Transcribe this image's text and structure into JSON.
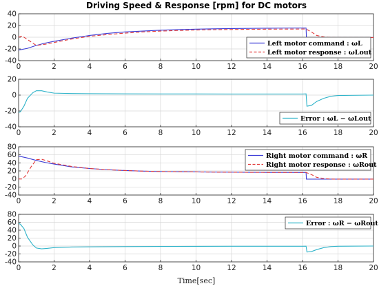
{
  "figure": {
    "title": "Driving Speed & Response [rpm] for DC motors",
    "xlabel": "Time[sec]"
  },
  "chart_data": [
    {
      "type": "line",
      "xlim": [
        0,
        20
      ],
      "ylim": [
        -40,
        40
      ],
      "xticks": [
        0,
        2,
        4,
        6,
        8,
        10,
        12,
        14,
        16,
        18,
        20
      ],
      "yticks": [
        -40,
        -20,
        0,
        20,
        40
      ],
      "grid": true,
      "legend": "bottom-right",
      "series": [
        {
          "name": "Left motor command : ωL",
          "color": "#3b3bd6",
          "dash": "solid",
          "x": [
            0,
            0.5,
            1,
            1.5,
            2,
            3,
            4,
            5,
            6,
            7,
            8,
            9,
            10,
            11,
            12,
            13,
            14,
            15,
            16.2,
            16.22,
            17,
            18,
            19,
            20
          ],
          "y": [
            -22,
            -19,
            -14,
            -10,
            -7,
            -1.5,
            3,
            6.5,
            9,
            10.5,
            12,
            13,
            13.8,
            14.3,
            14.8,
            15.1,
            15.4,
            15.6,
            15.7,
            -0.5,
            -0.5,
            -0.5,
            -0.5,
            -0.5
          ]
        },
        {
          "name": "Left motor response : ωLout",
          "color": "#e23a3a",
          "dash": "dashed",
          "x": [
            0,
            0.2,
            0.5,
            1,
            1.5,
            2,
            3,
            4,
            5,
            6,
            7,
            8,
            9,
            10,
            11,
            12,
            13,
            14,
            15,
            16.2,
            16.5,
            16.8,
            17.2,
            17.6,
            18,
            19,
            20
          ],
          "y": [
            0,
            2,
            -4,
            -14,
            -12,
            -9,
            -3,
            1.5,
            4.5,
            7,
            9,
            10.5,
            11.5,
            12.3,
            12.8,
            13.2,
            13.5,
            13.7,
            13.9,
            14,
            9,
            3,
            0.5,
            -0.3,
            -0.5,
            -0.5,
            -0.5
          ]
        }
      ]
    },
    {
      "type": "line",
      "xlim": [
        0,
        20
      ],
      "ylim": [
        -40,
        20
      ],
      "xticks": [
        0,
        2,
        4,
        6,
        8,
        10,
        12,
        14,
        16,
        18,
        20
      ],
      "yticks": [
        -40,
        -20,
        0,
        20
      ],
      "grid": true,
      "legend": "bottom-right",
      "series": [
        {
          "name": "Error : ωL − ωLout",
          "color": "#2eb3c9",
          "dash": "solid",
          "x": [
            0,
            0.1,
            0.3,
            0.5,
            0.8,
            1,
            1.3,
            1.6,
            2,
            3,
            4,
            6,
            8,
            10,
            12,
            14,
            16,
            16.2,
            16.25,
            16.5,
            16.8,
            17.2,
            17.6,
            18,
            20
          ],
          "y": [
            -22,
            -21,
            -14,
            -4,
            3,
            5.5,
            5.5,
            4,
            2.5,
            2,
            1.8,
            1.6,
            1.5,
            1.5,
            1.4,
            1.4,
            1.4,
            1.6,
            -14,
            -13,
            -8,
            -4,
            -1.5,
            -0.5,
            0
          ]
        }
      ]
    },
    {
      "type": "line",
      "xlim": [
        0,
        20
      ],
      "ylim": [
        -40,
        80
      ],
      "xticks": [
        0,
        2,
        4,
        6,
        8,
        10,
        12,
        14,
        16,
        18,
        20
      ],
      "yticks": [
        -40,
        -20,
        0,
        20,
        40,
        60,
        80
      ],
      "grid": true,
      "legend": "top-right",
      "series": [
        {
          "name": "Right motor command : ωR",
          "color": "#3b3bd6",
          "dash": "solid",
          "x": [
            0,
            0.5,
            1,
            1.5,
            2,
            3,
            4,
            5,
            6,
            7,
            8,
            9,
            10,
            11,
            12,
            13,
            14,
            15,
            16.2,
            16.22,
            17,
            18,
            19,
            20
          ],
          "y": [
            57,
            52,
            46,
            41,
            37,
            30,
            26,
            23,
            21,
            19.5,
            18.5,
            18,
            17.5,
            17,
            16.8,
            16.5,
            16.3,
            16.2,
            16.1,
            -0.5,
            -0.5,
            -0.5,
            -0.5,
            -0.5
          ]
        },
        {
          "name": "Right motor response : ωRout",
          "color": "#e23a3a",
          "dash": "dashed",
          "x": [
            0,
            0.2,
            0.4,
            0.7,
            1,
            1.3,
            1.6,
            2,
            3,
            4,
            5,
            6,
            7,
            8,
            9,
            10,
            11,
            12,
            13,
            14,
            15,
            16.2,
            16.5,
            16.8,
            17.2,
            17.6,
            18,
            19,
            20
          ],
          "y": [
            0,
            0,
            8,
            30,
            48,
            49,
            45,
            39,
            31,
            26,
            23,
            21,
            19.5,
            18.5,
            18,
            17.5,
            17,
            16.8,
            16.5,
            16.3,
            16.2,
            16.1,
            11,
            4,
            1,
            -0.3,
            -0.5,
            -0.5,
            -0.5
          ]
        }
      ]
    },
    {
      "type": "line",
      "xlim": [
        0,
        20
      ],
      "ylim": [
        -40,
        80
      ],
      "xticks": [
        0,
        2,
        4,
        6,
        8,
        10,
        12,
        14,
        16,
        18,
        20
      ],
      "yticks": [
        -40,
        -20,
        0,
        20,
        40,
        60,
        80
      ],
      "grid": true,
      "legend": "top-right",
      "series": [
        {
          "name": "Error : ωR − ωRout",
          "color": "#2eb3c9",
          "dash": "solid",
          "x": [
            0,
            0.1,
            0.3,
            0.5,
            0.8,
            1,
            1.3,
            1.6,
            2,
            3,
            4,
            6,
            8,
            10,
            12,
            14,
            16,
            16.2,
            16.25,
            16.5,
            16.8,
            17.2,
            17.6,
            18,
            20
          ],
          "y": [
            57,
            55,
            44,
            22,
            3,
            -5,
            -7,
            -6,
            -4,
            -2.5,
            -2,
            -1.5,
            -1,
            -0.8,
            -0.6,
            -0.5,
            -0.5,
            -0.3,
            -15,
            -14,
            -9,
            -4,
            -1.5,
            -0.5,
            0
          ]
        }
      ]
    }
  ]
}
